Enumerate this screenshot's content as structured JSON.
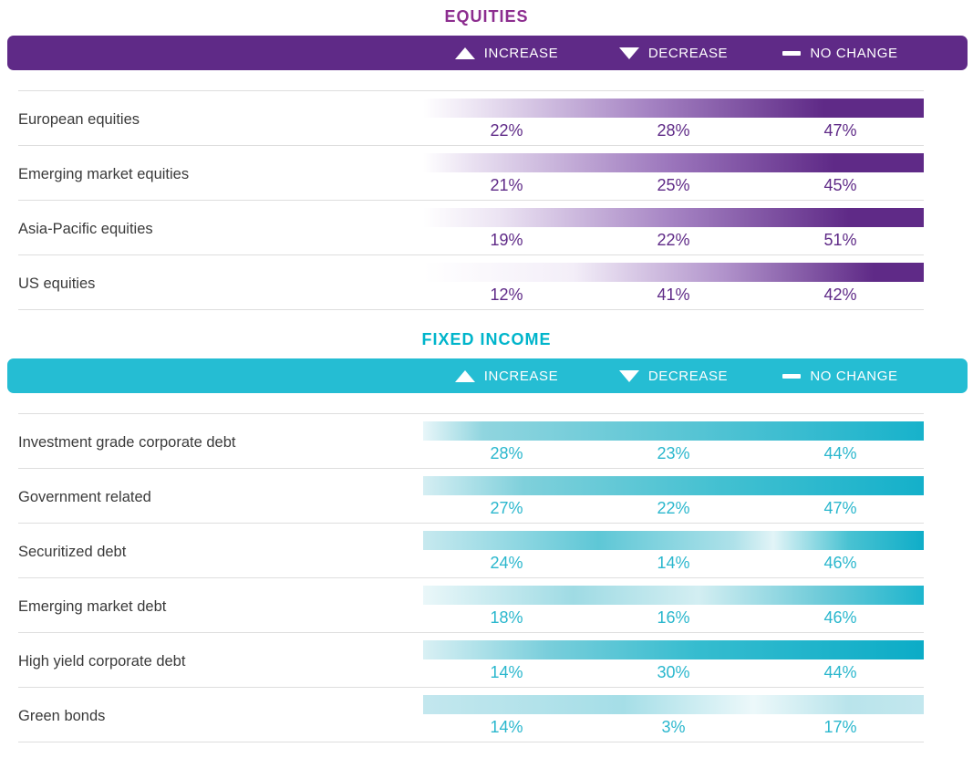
{
  "sections": [
    {
      "title": "EQUITIES",
      "accent": "#5f2a87",
      "title_color": "#8c2d8f",
      "legend": {
        "increase": "INCREASE",
        "decrease": "DECREASE",
        "no_change": "NO CHANGE"
      },
      "rows": [
        {
          "label": "European equities",
          "increase": "22%",
          "decrease": "28%",
          "no_change": "47%",
          "bar_style": "background:linear-gradient(90deg,#ffffff 0%,#e9e0f1 12%,#a583c3 45%,#5f2a87 80%)"
        },
        {
          "label": "Emerging market equities",
          "increase": "21%",
          "decrease": "25%",
          "no_change": "45%",
          "bar_style": "background:linear-gradient(90deg,#ffffff 0%,#e9e0f1 10%,#9a74bb 50%,#5f2a87 82%)"
        },
        {
          "label": "Asia-Pacific equities",
          "increase": "19%",
          "decrease": "22%",
          "no_change": "51%",
          "bar_style": "background:linear-gradient(90deg,#ffffff 0%,#ece4f3 15%,#a583c3 50%,#5f2a87 85%)"
        },
        {
          "label": "US equities",
          "increase": "12%",
          "decrease": "41%",
          "no_change": "42%",
          "bar_style": "background:linear-gradient(90deg,#ffffff 0%,#f3eef8 30%,#b193cb 60%,#5f2a87 90%)"
        }
      ]
    },
    {
      "title": "FIXED INCOME",
      "accent": "#25bdd3",
      "title_color": "#00b5cb",
      "legend": {
        "increase": "INCREASE",
        "decrease": "DECREASE",
        "no_change": "NO CHANGE"
      },
      "rows": [
        {
          "label": "Investment grade corporate debt",
          "increase": "28%",
          "decrease": "23%",
          "no_change": "44%",
          "bar_style": "background:linear-gradient(90deg,#e8f6f9 0%,#90d5df 12%,#5cc6d5 50%,#17b2cb 100%)"
        },
        {
          "label": "Government related",
          "increase": "27%",
          "decrease": "22%",
          "no_change": "47%",
          "bar_style": "background:linear-gradient(90deg,#d5eef3 0%,#7fd0db 20%,#42c0d1 60%,#14b0ca 100%)"
        },
        {
          "label": "Securitized debt",
          "increase": "24%",
          "decrease": "14%",
          "no_change": "46%",
          "bar_style": "background:linear-gradient(90deg,#c7e9ef 0%,#5ec7d6 35%,#aee1e9 62%,#e2f4f7 70%,#49c2d2 85%,#0fadc8 100%)"
        },
        {
          "label": "Emerging market debt",
          "increase": "18%",
          "decrease": "16%",
          "no_change": "46%",
          "bar_style": "background:linear-gradient(90deg,#eaf7f9 0%,#9fdbe4 30%,#d3eef2 55%,#6ccad8 80%,#1db5cd 100%)"
        },
        {
          "label": "High yield corporate debt",
          "increase": "14%",
          "decrease": "30%",
          "no_change": "44%",
          "bar_style": "background:linear-gradient(90deg,#d9f0f4 0%,#79cedb 25%,#35bccf 55%,#0cacc7 100%)"
        },
        {
          "label": "Green bonds",
          "increase": "14%",
          "decrease": "3%",
          "no_change": "17%",
          "bar_style": "background:linear-gradient(90deg,#c3e7ee 0%,#a5dee7 40%,#ecf8fa 66%,#b9e4eb 85%,#c3e7ee 100%)"
        }
      ]
    }
  ],
  "chart_data": [
    {
      "type": "table",
      "title": "EQUITIES",
      "columns": [
        "Increase",
        "Decrease",
        "No change"
      ],
      "categories": [
        "European equities",
        "Emerging market equities",
        "Asia-Pacific equities",
        "US equities"
      ],
      "series": [
        {
          "name": "Increase",
          "values": [
            22,
            21,
            19,
            12
          ]
        },
        {
          "name": "Decrease",
          "values": [
            28,
            25,
            22,
            41
          ]
        },
        {
          "name": "No change",
          "values": [
            47,
            45,
            51,
            42
          ]
        }
      ],
      "unit": "%",
      "accent_color": "#5f2a87",
      "legend_position": "top"
    },
    {
      "type": "table",
      "title": "FIXED INCOME",
      "columns": [
        "Increase",
        "Decrease",
        "No change"
      ],
      "categories": [
        "Investment grade corporate debt",
        "Government related",
        "Securitized debt",
        "Emerging market debt",
        "High yield corporate debt",
        "Green bonds"
      ],
      "series": [
        {
          "name": "Increase",
          "values": [
            28,
            27,
            24,
            18,
            14,
            14
          ]
        },
        {
          "name": "Decrease",
          "values": [
            23,
            22,
            14,
            16,
            30,
            3
          ]
        },
        {
          "name": "No change",
          "values": [
            44,
            47,
            46,
            46,
            44,
            17
          ]
        }
      ],
      "unit": "%",
      "accent_color": "#25bdd3",
      "legend_position": "top"
    }
  ]
}
